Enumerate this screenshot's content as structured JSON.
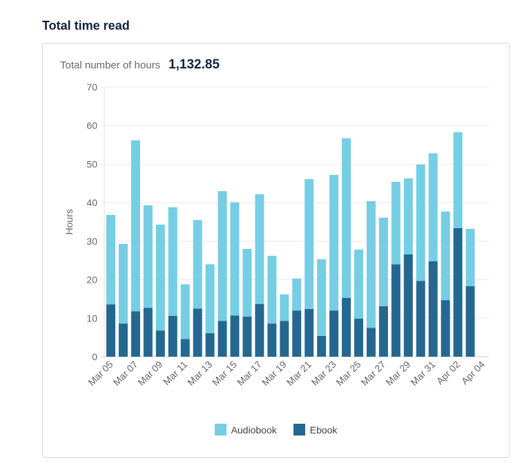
{
  "page": {
    "title": "Total time read"
  },
  "summary": {
    "label": "Total number of hours",
    "value": "1,132.85"
  },
  "colors": {
    "audiobook": "#75cee3",
    "ebook": "#246891"
  },
  "chart_data": {
    "type": "bar",
    "stacked": true,
    "ylabel": "Hours",
    "ylim": [
      0,
      70
    ],
    "yticks": [
      0,
      10,
      20,
      30,
      40,
      50,
      60,
      70
    ],
    "grid": true,
    "legend": "bottom",
    "categories": [
      "Mar 05",
      "Mar 06",
      "Mar 07",
      "Mar 08",
      "Mar 09",
      "Mar 10",
      "Mar 11",
      "Mar 12",
      "Mar 13",
      "Mar 14",
      "Mar 15",
      "Mar 16",
      "Mar 17",
      "Mar 18",
      "Mar 19",
      "Mar 20",
      "Mar 21",
      "Mar 22",
      "Mar 23",
      "Mar 24",
      "Mar 25",
      "Mar 26",
      "Mar 27",
      "Mar 28",
      "Mar 29",
      "Mar 30",
      "Mar 31",
      "Apr 01",
      "Apr 02",
      "Apr 03"
    ],
    "xtick_labels": [
      "Mar 05",
      "Mar 07",
      "Mar 09",
      "Mar 11",
      "Mar 13",
      "Mar 15",
      "Mar 17",
      "Mar 19",
      "Mar 21",
      "Mar 23",
      "Mar 25",
      "Mar 27",
      "Mar 29",
      "Mar 31",
      "Apr 02",
      "Apr 04"
    ],
    "series": [
      {
        "name": "Ebook",
        "values": [
          13.6,
          8.6,
          11.8,
          12.7,
          6.8,
          10.6,
          4.6,
          12.5,
          6.1,
          9.3,
          10.7,
          10.4,
          13.7,
          8.6,
          9.3,
          12.0,
          12.4,
          5.4,
          12.0,
          15.3,
          9.9,
          7.5,
          13.1,
          24.0,
          26.6,
          19.7,
          24.8,
          14.7,
          33.4,
          18.3
        ]
      },
      {
        "name": "Audiobook",
        "values": [
          23.2,
          20.7,
          44.4,
          26.6,
          27.5,
          28.2,
          14.2,
          23.0,
          17.9,
          33.7,
          29.4,
          17.6,
          28.5,
          17.6,
          6.9,
          8.3,
          33.7,
          19.9,
          35.2,
          41.4,
          17.9,
          32.9,
          23.0,
          21.4,
          19.7,
          30.2,
          28.0,
          23.0,
          24.9,
          14.9
        ]
      }
    ]
  }
}
